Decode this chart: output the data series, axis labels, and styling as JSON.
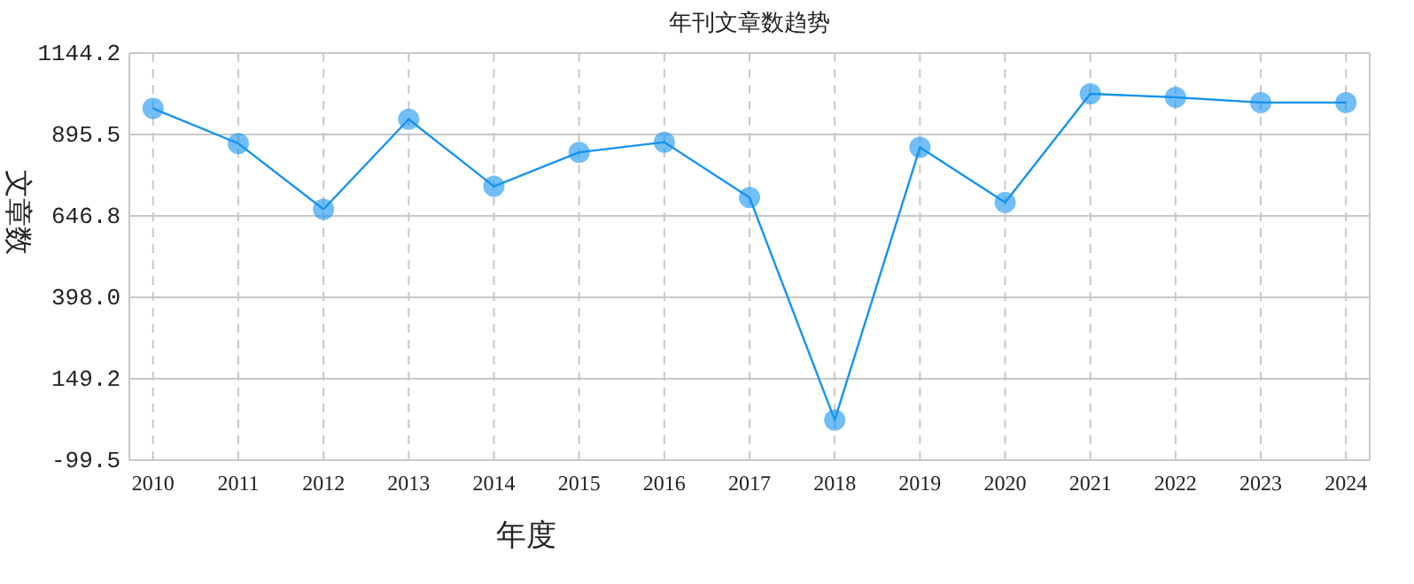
{
  "chart_data": {
    "type": "line",
    "title": "年刊文章数趋势",
    "xlabel": "年度",
    "ylabel": "文章数",
    "categories": [
      "2010",
      "2011",
      "2012",
      "2013",
      "2014",
      "2015",
      "2016",
      "2017",
      "2018",
      "2019",
      "2020",
      "2021",
      "2022",
      "2023",
      "2024"
    ],
    "series": [
      {
        "color": "#1493f0",
        "values": [
          975,
          868,
          667,
          942,
          737,
          841,
          872,
          703,
          23,
          856,
          688,
          1020,
          1009,
          993,
          993
        ]
      }
    ],
    "ylim": [
      -99.5,
      1144.2
    ],
    "yticks": [
      -99.5,
      149.2,
      {
        "value": 398,
        "label": "398.0"
      },
      646.8,
      895.5,
      1144.2
    ],
    "grid": true,
    "marker": "circle"
  }
}
